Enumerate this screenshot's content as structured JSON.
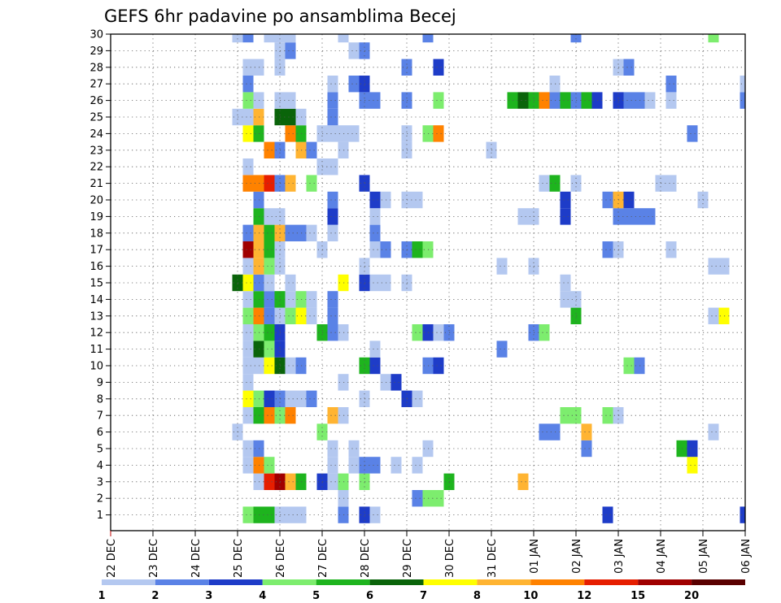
{
  "chart_data": {
    "type": "heatmap",
    "title": "GEFS 6hr padavine po ansamblima Becej",
    "y_categories": [
      "1",
      "2",
      "3",
      "4",
      "5",
      "6",
      "7",
      "8",
      "9",
      "10",
      "11",
      "12",
      "13",
      "14",
      "15",
      "16",
      "17",
      "18",
      "19",
      "20",
      "21",
      "22",
      "23",
      "24",
      "25",
      "26",
      "27",
      "28",
      "29",
      "30"
    ],
    "x_categories": [
      "22 DEC",
      "23 DEC",
      "24 DEC",
      "25 DEC",
      "26 DEC",
      "27 DEC",
      "28 DEC",
      "29 DEC",
      "30 DEC",
      "31 DEC",
      "01 JAN",
      "02 JAN",
      "03 JAN",
      "04 JAN",
      "05 JAN",
      "06 JAN"
    ],
    "x_step_hours": 6,
    "x_range_steps": [
      0,
      60
    ],
    "grid": "dotted",
    "color_scale": {
      "labels": [
        "1",
        "2",
        "3",
        "4",
        "5",
        "6",
        "7",
        "8",
        "10",
        "12",
        "15",
        "20"
      ],
      "colors": [
        "#b4c8f0",
        "#5a82e6",
        "#1e3cc8",
        "#7ded6e",
        "#1eb41e",
        "#0a640a",
        "#ffff00",
        "#ffb432",
        "#ff8200",
        "#e61e00",
        "#a00000",
        "#5a0000"
      ],
      "placement": "bottom"
    },
    "cells": {
      "1": {
        "13": 4,
        "14": 5,
        "15": 5,
        "16": 1,
        "17": 1,
        "18": 1,
        "22": 2,
        "24": 3,
        "25": 1,
        "47": 3,
        "60": 3
      },
      "2": {
        "22": 1,
        "29": 2,
        "30": 4,
        "31": 4
      },
      "3": {
        "14": 1,
        "15": 10,
        "16": 11,
        "17": 8,
        "18": 5,
        "20": 3,
        "21": 1,
        "22": 4,
        "24": 4,
        "32": 5,
        "39": 8
      },
      "4": {
        "13": 1,
        "14": 9,
        "15": 4,
        "21": 1,
        "23": 1,
        "24": 2,
        "25": 2,
        "27": 1,
        "29": 1,
        "55": 7
      },
      "5": {
        "13": 1,
        "14": 2,
        "21": 1,
        "23": 1,
        "30": 1,
        "45": 2,
        "54": 5,
        "55": 3
      },
      "6": {
        "12": 1,
        "20": 4,
        "41": 2,
        "42": 2,
        "45": 8,
        "57": 1
      },
      "7": {
        "13": 1,
        "14": 5,
        "15": 9,
        "16": 4,
        "17": 9,
        "21": 8,
        "22": 1,
        "43": 4,
        "44": 4,
        "47": 4,
        "48": 1
      },
      "8": {
        "13": 7,
        "14": 4,
        "15": 3,
        "16": 2,
        "17": 1,
        "18": 1,
        "19": 2,
        "24": 1,
        "28": 3,
        "29": 1
      },
      "9": {
        "13": 1,
        "22": 1,
        "26": 1,
        "27": 3
      },
      "10": {
        "13": 1,
        "14": 1,
        "15": 7,
        "16": 6,
        "17": 1,
        "18": 2,
        "24": 5,
        "25": 3,
        "30": 2,
        "31": 3,
        "49": 4,
        "50": 2
      },
      "11": {
        "13": 1,
        "14": 6,
        "15": 4,
        "16": 3,
        "25": 1,
        "37": 2
      },
      "12": {
        "13": 1,
        "14": 4,
        "15": 5,
        "16": 3,
        "20": 5,
        "21": 2,
        "22": 1,
        "29": 4,
        "30": 3,
        "31": 1,
        "32": 2,
        "40": 2,
        "41": 4
      },
      "13": {
        "13": 4,
        "14": 9,
        "15": 2,
        "16": 1,
        "17": 4,
        "18": 7,
        "19": 1,
        "21": 2,
        "44": 5,
        "57": 1,
        "58": 7
      },
      "14": {
        "13": 1,
        "14": 5,
        "15": 2,
        "16": 5,
        "17": 1,
        "18": 4,
        "19": 1,
        "21": 2,
        "43": 1,
        "44": 1
      },
      "15": {
        "12": 6,
        "13": 7,
        "14": 2,
        "15": 1,
        "17": 1,
        "22": 7,
        "24": 3,
        "25": 1,
        "26": 1,
        "28": 1,
        "43": 1
      },
      "16": {
        "13": 1,
        "14": 8,
        "15": 4,
        "16": 1,
        "24": 1,
        "37": 1,
        "40": 1,
        "57": 1,
        "58": 1
      },
      "17": {
        "13": 11,
        "14": 8,
        "15": 5,
        "16": 1,
        "20": 1,
        "25": 1,
        "26": 2,
        "28": 2,
        "29": 5,
        "30": 4,
        "47": 2,
        "48": 1,
        "53": 1
      },
      "18": {
        "13": 2,
        "14": 8,
        "15": 5,
        "16": 8,
        "17": 2,
        "18": 2,
        "19": 1,
        "21": 1,
        "25": 2
      },
      "19": {
        "14": 5,
        "15": 1,
        "16": 1,
        "21": 3,
        "25": 1,
        "39": 1,
        "40": 1,
        "43": 3,
        "48": 2,
        "49": 2,
        "50": 2,
        "51": 2
      },
      "20": {
        "14": 2,
        "21": 2,
        "25": 3,
        "26": 1,
        "28": 1,
        "29": 1,
        "43": 3,
        "47": 2,
        "48": 8,
        "49": 3,
        "56": 1
      },
      "21": {
        "13": 9,
        "14": 9,
        "15": 10,
        "16": 2,
        "17": 8,
        "19": 4,
        "24": 3,
        "41": 1,
        "42": 5,
        "44": 1,
        "52": 1,
        "53": 1
      },
      "22": {
        "13": 1,
        "20": 1,
        "21": 1
      },
      "23": {
        "15": 9,
        "16": 2,
        "18": 8,
        "19": 2,
        "22": 1,
        "28": 1,
        "36": 1
      },
      "24": {
        "13": 7,
        "14": 5,
        "17": 9,
        "18": 5,
        "20": 1,
        "21": 1,
        "22": 1,
        "23": 1,
        "28": 1,
        "30": 4,
        "31": 9,
        "55": 2
      },
      "25": {
        "12": 1,
        "13": 1,
        "14": 8,
        "16": 6,
        "17": 6,
        "18": 1,
        "21": 2
      },
      "26": {
        "13": 4,
        "14": 1,
        "16": 1,
        "17": 1,
        "21": 2,
        "24": 2,
        "25": 2,
        "28": 2,
        "31": 4,
        "38": 5,
        "39": 6,
        "40": 5,
        "41": 9,
        "42": 2,
        "43": 5,
        "44": 2,
        "45": 5,
        "46": 3,
        "48": 3,
        "49": 2,
        "50": 2,
        "51": 1,
        "53": 1,
        "60": 2
      },
      "27": {
        "13": 2,
        "21": 1,
        "23": 2,
        "24": 3,
        "42": 1,
        "53": 2,
        "60": 1
      },
      "28": {
        "13": 1,
        "14": 1,
        "16": 1,
        "28": 2,
        "31": 3,
        "48": 1,
        "49": 2
      },
      "29": {
        "16": 1,
        "17": 2,
        "23": 1,
        "24": 2
      },
      "30": {
        "12": 1,
        "13": 2,
        "15": 1,
        "16": 1,
        "17": 1,
        "22": 1,
        "30": 2,
        "44": 2,
        "57": 4
      }
    }
  }
}
